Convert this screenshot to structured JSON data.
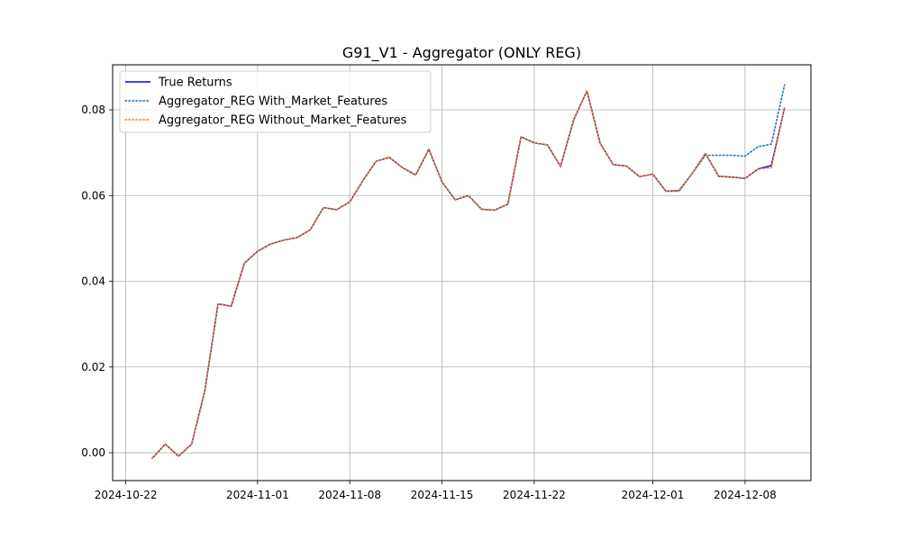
{
  "chart_data": {
    "type": "line",
    "title": "G91_V1 - Aggregator (ONLY REG)",
    "xlabel": "",
    "ylabel": "",
    "x_axis": {
      "type": "date",
      "range": [
        "2024-10-21",
        "2024-12-13"
      ],
      "ticks": [
        "2024-10-22",
        "2024-11-01",
        "2024-11-08",
        "2024-11-15",
        "2024-11-22",
        "2024-12-01",
        "2024-12-08"
      ]
    },
    "y_axis": {
      "range": [
        -0.0065,
        0.0905
      ],
      "ticks": [
        0.0,
        0.02,
        0.04,
        0.06,
        0.08
      ],
      "tick_labels": [
        "0.00",
        "0.02",
        "0.04",
        "0.06",
        "0.08"
      ]
    },
    "grid": true,
    "legend": {
      "placement": "top-left",
      "entries": [
        "True Returns",
        "Aggregator_REG With_Market_Features",
        "Aggregator_REG Without_Market_Features"
      ]
    },
    "x": [
      "2024-10-24",
      "2024-10-25",
      "2024-10-26",
      "2024-10-27",
      "2024-10-28",
      "2024-10-29",
      "2024-10-30",
      "2024-10-31",
      "2024-11-01",
      "2024-11-02",
      "2024-11-03",
      "2024-11-04",
      "2024-11-05",
      "2024-11-06",
      "2024-11-07",
      "2024-11-08",
      "2024-11-09",
      "2024-11-10",
      "2024-11-11",
      "2024-11-12",
      "2024-11-13",
      "2024-11-14",
      "2024-11-15",
      "2024-11-16",
      "2024-11-17",
      "2024-11-18",
      "2024-11-19",
      "2024-11-20",
      "2024-11-21",
      "2024-11-22",
      "2024-11-23",
      "2024-11-24",
      "2024-11-25",
      "2024-11-26",
      "2024-11-27",
      "2024-11-28",
      "2024-11-29",
      "2024-11-30",
      "2024-12-01",
      "2024-12-02",
      "2024-12-03",
      "2024-12-04",
      "2024-12-05",
      "2024-12-06",
      "2024-12-07",
      "2024-12-08",
      "2024-12-09",
      "2024-12-10",
      "2024-12-11"
    ],
    "series": [
      {
        "name": "True Returns",
        "color": "#0000ff",
        "style": "solid",
        "values": [
          -0.0013,
          0.002,
          -0.0008,
          0.002,
          0.0145,
          0.0347,
          0.0342,
          0.0442,
          0.047,
          0.0487,
          0.0496,
          0.0502,
          0.052,
          0.0572,
          0.0567,
          0.0585,
          0.0635,
          0.068,
          0.0689,
          0.0665,
          0.0648,
          0.0708,
          0.0632,
          0.059,
          0.06,
          0.0568,
          0.0566,
          0.058,
          0.0737,
          0.0723,
          0.0718,
          0.0668,
          0.0777,
          0.0844,
          0.0722,
          0.0672,
          0.0669,
          0.0644,
          0.065,
          0.061,
          0.0612,
          0.0652,
          0.0698,
          0.0645,
          0.0643,
          0.064,
          0.0662,
          0.067,
          0.0805
        ]
      },
      {
        "name": "Aggregator_REG With_Market_Features",
        "color": "#1f77b4",
        "style": "dotted",
        "values": [
          -0.0013,
          0.002,
          -0.0008,
          0.002,
          0.0145,
          0.0347,
          0.0342,
          0.0442,
          0.047,
          0.0487,
          0.0496,
          0.0502,
          0.052,
          0.0572,
          0.0567,
          0.0585,
          0.0635,
          0.068,
          0.0689,
          0.0665,
          0.0648,
          0.0708,
          0.0632,
          0.059,
          0.06,
          0.0568,
          0.0566,
          0.058,
          0.0737,
          0.0723,
          0.0718,
          0.0668,
          0.0777,
          0.0844,
          0.0722,
          0.0672,
          0.0669,
          0.0644,
          0.065,
          0.061,
          0.061,
          0.0652,
          0.0694,
          0.0694,
          0.0694,
          0.0692,
          0.0714,
          0.072,
          0.0858
        ]
      },
      {
        "name": "Aggregator_REG Without_Market_Features",
        "color": "#ff7f0e",
        "style": "dotted",
        "values": [
          -0.0013,
          0.002,
          -0.0008,
          0.002,
          0.0145,
          0.0347,
          0.0342,
          0.0442,
          0.047,
          0.0487,
          0.0496,
          0.0502,
          0.052,
          0.0572,
          0.0567,
          0.0585,
          0.0635,
          0.068,
          0.0689,
          0.0665,
          0.0648,
          0.0708,
          0.0632,
          0.059,
          0.06,
          0.0568,
          0.0566,
          0.058,
          0.0737,
          0.0723,
          0.0718,
          0.0668,
          0.0777,
          0.0844,
          0.0722,
          0.0672,
          0.0669,
          0.0644,
          0.065,
          0.061,
          0.0612,
          0.0652,
          0.0698,
          0.0645,
          0.0643,
          0.064,
          0.0662,
          0.0665,
          0.0805
        ]
      }
    ]
  }
}
